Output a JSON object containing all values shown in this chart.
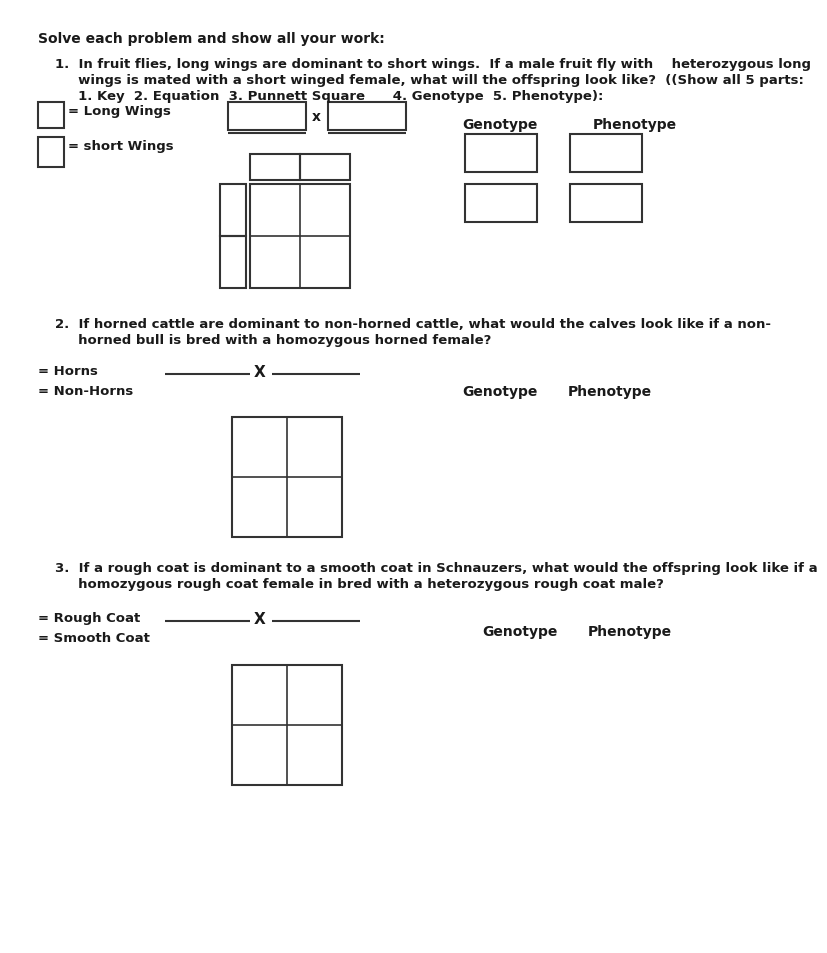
{
  "bg_color": "#ffffff",
  "text_color": "#1a1a1a",
  "header": "Solve each problem and show all your work:",
  "q1_line1": "1.  In fruit flies, long wings are dominant to short wings.  If a male fruit fly with    heterozygous long",
  "q1_line2": "     wings is mated with a short winged female, what will the offspring look like?  ((Show all 5 parts:",
  "q1_line3": "     1. Key  2. Equation  3. Punnett Square      4. Genotype  5. Phenotype):",
  "q1_key1": "= Long Wings",
  "q1_key2": "= short Wings",
  "q2_line1": "2.  If horned cattle are dominant to non-horned cattle, what would the calves look like if a non-",
  "q2_line2": "     horned bull is bred with a homozygous horned female?",
  "q2_key1": "= Horns",
  "q2_key2": "= Non-Horns",
  "q3_line1": "3.  If a rough coat is dominant to a smooth coat in Schnauzers, what would the offspring look like if a",
  "q3_line2": "     homozygous rough coat female in bred with a heterozygous rough coat male?",
  "q3_key1": "= Rough Coat",
  "q3_key2": "= Smooth Coat",
  "genotype_label": "Genotype",
  "phenotype_label": "Phenotype"
}
